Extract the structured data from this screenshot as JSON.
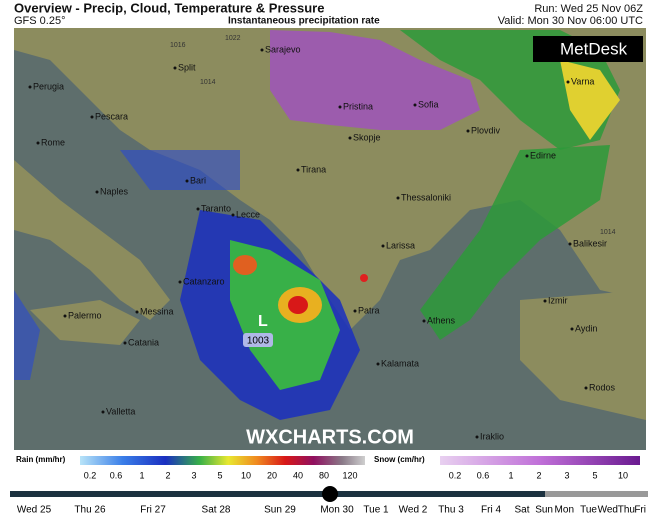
{
  "header": {
    "title": "Overview - Precip, Cloud, Temperature & Pressure",
    "model": "GFS 0.25°",
    "subtitle": "Instantaneous precipitation rate",
    "run": "Run: Wed 25 Nov 06Z",
    "valid": "Valid: Mon 30 Nov 06:00 UTC"
  },
  "map": {
    "logo": "MetDesk",
    "watermark": "WXCHARTS.COM",
    "low": {
      "symbol": "L",
      "pressure": "1003"
    },
    "isobars": [
      "1016",
      "1022",
      "1014",
      "1014"
    ],
    "cities": [
      "Sarajevo",
      "Split",
      "Perugia",
      "Pescara",
      "Rome",
      "Pristina",
      "Sofia",
      "Varna",
      "Skopje",
      "Plovdiv",
      "Edirne",
      "Naples",
      "Bari",
      "Tirana",
      "Thessaloniki",
      "Taranto",
      "Lecce",
      "Larissa",
      "Balikesir",
      "Catanzaro",
      "Izmir",
      "Palermo",
      "Messina",
      "Patra",
      "Athens",
      "Aydin",
      "Catania",
      "Kalamata",
      "Valletta",
      "Rodos",
      "Iraklio"
    ]
  },
  "legend": {
    "rain": {
      "label": "Rain (mm/hr)",
      "ticks": [
        "0.2",
        "0.6",
        "1",
        "2",
        "3",
        "5",
        "10",
        "20",
        "40",
        "80",
        "120"
      ]
    },
    "snow": {
      "label": "Snow (cm/hr)",
      "ticks": [
        "0.2",
        "0.6",
        "1",
        "2",
        "3",
        "5",
        "10"
      ]
    }
  },
  "timeline": {
    "days": [
      "Wed 25",
      "Thu 26",
      "Fri 27",
      "Sat 28",
      "Sun 29",
      "Mon 30",
      "Tue 1",
      "Wed 2",
      "Thu 3",
      "Fri 4",
      "Sat",
      "Sun",
      "Mon",
      "Tue",
      "Wed",
      "Thu",
      "Fri"
    ]
  }
}
